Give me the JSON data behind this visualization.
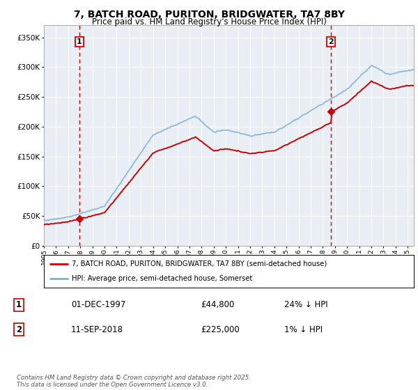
{
  "title": "7, BATCH ROAD, PURITON, BRIDGWATER, TA7 8BY",
  "subtitle": "Price paid vs. HM Land Registry's House Price Index (HPI)",
  "title_fontsize": 10,
  "subtitle_fontsize": 8.5,
  "ylim": [
    0,
    370000
  ],
  "yticks": [
    0,
    50000,
    100000,
    150000,
    200000,
    250000,
    300000,
    350000
  ],
  "ytick_labels": [
    "£0",
    "£50K",
    "£100K",
    "£150K",
    "£200K",
    "£250K",
    "£300K",
    "£350K"
  ],
  "sale1_date": "01-DEC-1997",
  "sale1_price": 44800,
  "sale1_hpi_diff": "24% ↓ HPI",
  "sale2_date": "11-SEP-2018",
  "sale2_price": 225000,
  "sale2_hpi_diff": "1% ↓ HPI",
  "sale1_x": 1997.917,
  "sale2_x": 2018.667,
  "line1_label": "7, BATCH ROAD, PURITON, BRIDGWATER, TA7 8BY (semi-detached house)",
  "line2_label": "HPI: Average price, semi-detached house, Somerset",
  "footer": "Contains HM Land Registry data © Crown copyright and database right 2025.\nThis data is licensed under the Open Government Licence v3.0.",
  "line_color_red": "#cc0000",
  "line_color_blue": "#7ab0d4",
  "vline_color": "#cc0000",
  "bg_color": "#ffffff",
  "plot_bg_color": "#e8eef4",
  "grid_color": "#ffffff"
}
